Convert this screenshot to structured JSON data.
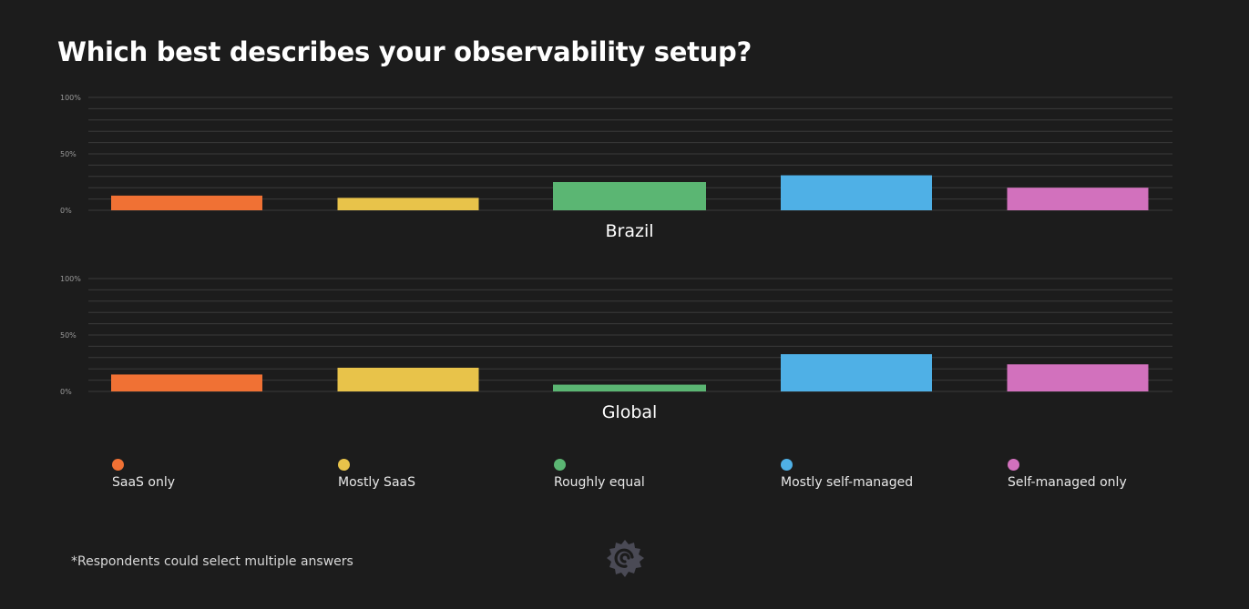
{
  "title": "Which best describes your observability setup?",
  "footnote": "*Respondents could select multiple answers",
  "logo": "grafana-icon",
  "chart_data": [
    {
      "type": "bar",
      "subtitle": "Brazil",
      "categories": [
        "SaaS only",
        "Mostly SaaS",
        "Roughly equal",
        "Mostly self-managed",
        "Self-managed only"
      ],
      "values": [
        13,
        11,
        25,
        31,
        20
      ],
      "colors": [
        "#f07134",
        "#e8c34a",
        "#5bb673",
        "#4fb0e6",
        "#d271bd"
      ],
      "ylim": [
        0,
        100
      ],
      "yticks": [
        "0%",
        "50%",
        "100%"
      ],
      "grid": true
    },
    {
      "type": "bar",
      "subtitle": "Global",
      "categories": [
        "SaaS only",
        "Mostly SaaS",
        "Roughly equal",
        "Mostly self-managed",
        "Self-managed only"
      ],
      "values": [
        15,
        21,
        6,
        33,
        24
      ],
      "colors": [
        "#f07134",
        "#e8c34a",
        "#5bb673",
        "#4fb0e6",
        "#d271bd"
      ],
      "ylim": [
        0,
        100
      ],
      "yticks": [
        "0%",
        "50%",
        "100%"
      ],
      "grid": true
    }
  ],
  "legend": [
    {
      "label": "SaaS only",
      "color": "#f07134"
    },
    {
      "label": "Mostly SaaS",
      "color": "#e8c34a"
    },
    {
      "label": "Roughly equal",
      "color": "#5bb673"
    },
    {
      "label": "Mostly self-managed",
      "color": "#4fb0e6"
    },
    {
      "label": "Self-managed only",
      "color": "#d271bd"
    }
  ]
}
